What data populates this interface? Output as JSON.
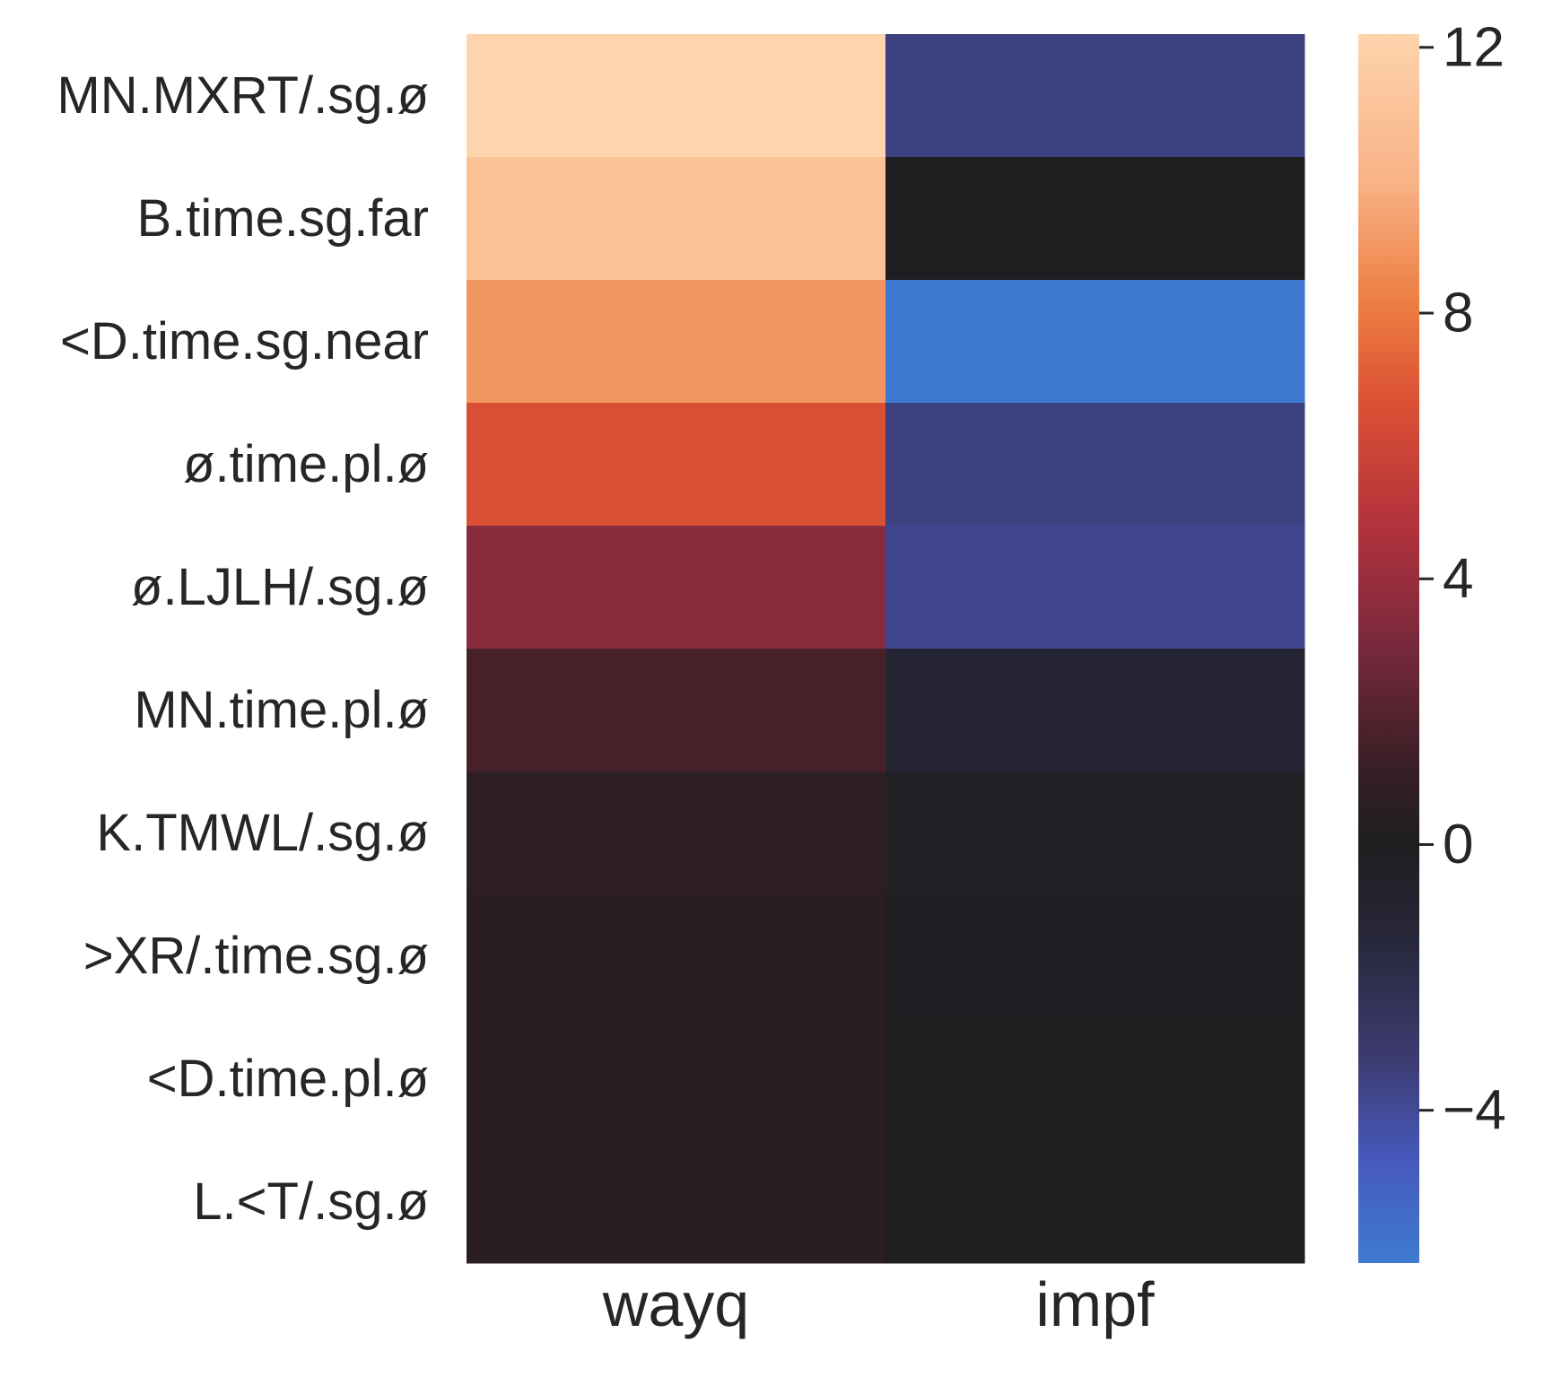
{
  "chart_data": {
    "type": "heatmap",
    "title": "",
    "xlabel": "",
    "ylabel": "",
    "x_categories": [
      "wayq",
      "impf"
    ],
    "y_categories": [
      "MN.MXRT/.sg.ø",
      "B.time.sg.far",
      "<D.time.sg.near",
      "ø.time.pl.ø",
      "ø.LJLH/.sg.ø",
      "MN.time.pl.ø",
      "K.TMWL/.sg.ø",
      ">XR/.time.sg.ø",
      "<D.time.pl.ø",
      "L.<T/.sg.ø"
    ],
    "values": [
      [
        12.2,
        -3.5
      ],
      [
        11.0,
        0.0
      ],
      [
        9.0,
        -6.2
      ],
      [
        6.5,
        -3.5
      ],
      [
        3.5,
        -3.8
      ],
      [
        1.6,
        -1.0
      ],
      [
        0.7,
        -0.3
      ],
      [
        0.6,
        -0.2
      ],
      [
        0.6,
        -0.1
      ],
      [
        0.6,
        -0.1
      ]
    ],
    "colorbar": {
      "vmin": -6.3,
      "vmax": 12.2,
      "ticks": [
        12,
        8,
        4,
        0,
        -4
      ],
      "tick_labels": [
        "12",
        "8",
        "4",
        "0",
        "−4"
      ],
      "colormap": "icefire",
      "center": 0
    },
    "grid": false,
    "legend": "colorbar-right"
  }
}
